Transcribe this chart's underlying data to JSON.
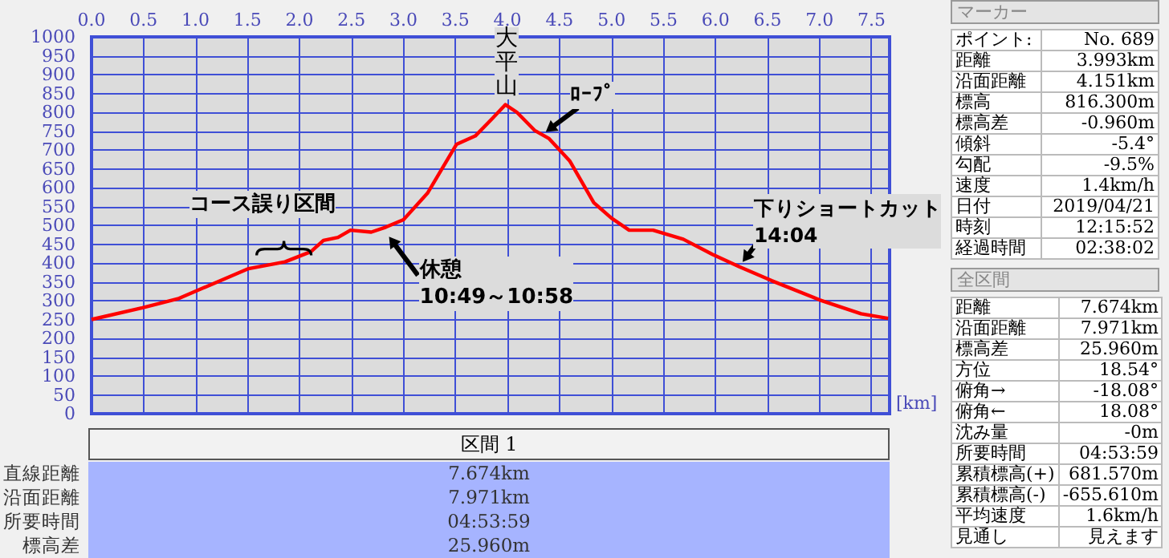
{
  "chart_data": [
    {
      "type": "line",
      "xlabel": "[km]",
      "x": [
        0,
        0.49,
        0.83,
        1.51,
        1.86,
        2.11,
        2.23,
        2.37,
        2.49,
        2.69,
        2.83,
        3.0,
        3.23,
        3.51,
        3.69,
        3.86,
        3.98,
        4.09,
        4.26,
        4.4,
        4.6,
        4.83,
        5.0,
        5.17,
        5.4,
        5.69,
        5.97,
        6.23,
        6.54,
        7.0,
        7.4,
        7.66
      ],
      "series": [
        {
          "color": "#ff0000",
          "values": [
            250,
            281,
            305,
            385,
            403,
            430,
            460,
            468,
            487,
            482,
            495,
            515,
            585,
            715,
            737,
            785,
            820,
            800,
            752,
            730,
            670,
            560,
            519,
            487,
            487,
            463,
            423,
            390,
            353,
            302,
            265,
            253
          ]
        }
      ],
      "xlim": [
        0,
        7.674
      ],
      "xticks": [
        {
          "value": 0,
          "label": "0.0"
        },
        0.5,
        {
          "value": 1,
          "label": "1.0"
        },
        1.5,
        {
          "value": 2,
          "label": "2.0"
        },
        2.5,
        {
          "value": 3,
          "label": "3.0"
        },
        3.5,
        {
          "value": 4,
          "label": "4.0"
        },
        4.5,
        {
          "value": 5,
          "label": "5.0"
        },
        5.5,
        {
          "value": 6,
          "label": "6.0"
        },
        6.5,
        {
          "value": 7,
          "label": "7.0"
        },
        7.5
      ],
      "ylim": [
        0,
        1000
      ],
      "yticks": [
        0,
        50,
        100,
        150,
        200,
        250,
        300,
        350,
        400,
        450,
        500,
        550,
        600,
        650,
        700,
        750,
        800,
        850,
        900,
        950,
        1000
      ],
      "grid": true,
      "annotations": [
        {
          "text": "大平山",
          "x": 3.98,
          "y": 820
        },
        {
          "text": "ﾛｰﾌﾟ",
          "x": 4.26,
          "y": 752
        },
        {
          "text": "コース誤り区間",
          "x": 1.85,
          "y": 420
        },
        {
          "text": "休憩\n10:49～10:58",
          "x": 2.83,
          "y": 495
        },
        {
          "text": "下りショートカット\n14:04",
          "x": 6.23,
          "y": 390
        }
      ]
    },
    {
      "type": "other",
      "title": "区間 1",
      "annotations": [
        "直線距離",
        "7.674km",
        "沿面距離",
        "7.971km",
        "所要時間",
        "04:53:59",
        "標高差",
        "25.960m"
      ]
    },
    {
      "type": "other",
      "title": "マーカー",
      "annotations": [
        "ポイント:",
        "No. 689",
        "距離",
        "3.993km",
        "沿面距離",
        "4.151km",
        "標高",
        "816.300m",
        "標高差",
        "-0.960m",
        "傾斜",
        "-5.4°",
        "勾配",
        "-9.5%",
        "速度",
        "1.4km/h",
        "日付",
        "2019/04/21",
        "時刻",
        "12:15:52",
        "経過時間",
        "02:38:02"
      ]
    },
    {
      "type": "other",
      "title": "全区間",
      "annotations": [
        "距離",
        "7.674km",
        "沿面距離",
        "7.971km",
        "標高差",
        "25.960m",
        "方位",
        "18.54°",
        "俯角→",
        "-18.08°",
        "俯角←",
        "18.08°",
        "沈み量",
        "-0m",
        "所要時間",
        "04:53:59",
        "累積標高(+)",
        "681.570m",
        "累積標高(-)",
        "-655.610m",
        "平均速度",
        "1.6km/h",
        "見通し",
        "見えます"
      ]
    }
  ]
}
